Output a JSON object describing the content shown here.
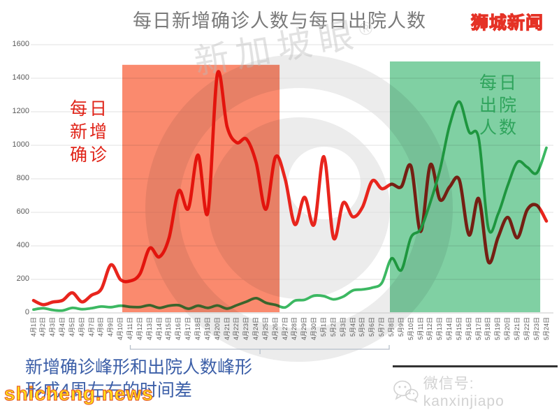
{
  "title": "每日新增确诊人数与每日出院人数",
  "brand_logo": "狮城新闻",
  "watermarks": {
    "diagonal": "新加坡眼",
    "registered": "®",
    "site": "shicheng.news"
  },
  "wechat_label": "微信号: kanxinjiapo",
  "annotations": {
    "left_label": [
      "每日",
      "新增",
      "确诊"
    ],
    "right_label": [
      "每日",
      "出院",
      "人数"
    ],
    "caption": [
      "新增确诊峰形和出院人数峰形",
      "形成4周左右的时间差"
    ]
  },
  "chart_data": {
    "type": "line",
    "title": "每日新增确诊人数与每日出院人数",
    "categories": [
      "4月1日",
      "4月2日",
      "4月3日",
      "4月4日",
      "4月5日",
      "4月6日",
      "4月7日",
      "4月8日",
      "4月9日",
      "4月10日",
      "4月11日",
      "4月12日",
      "4月13日",
      "4月14日",
      "4月15日",
      "4月16日",
      "4月17日",
      "4月18日",
      "4月19日",
      "4月20日",
      "4月21日",
      "4月22日",
      "4月23日",
      "4月24日",
      "4月25日",
      "4月26日",
      "4月27日",
      "4月28日",
      "4月29日",
      "4月30日",
      "5月1日",
      "5月2日",
      "5月3日",
      "5月4日",
      "5月5日",
      "5月6日",
      "5月7日",
      "5月8日",
      "5月9日",
      "5月10日",
      "5月11日",
      "5月12日",
      "5月13日",
      "5月14日",
      "5月15日",
      "5月16日",
      "5月17日",
      "5月18日",
      "5月19日",
      "5月20日",
      "5月21日",
      "5月22日",
      "5月23日",
      "5月24日"
    ],
    "series": [
      {
        "name": "每日新增确诊",
        "color": "#e8251d",
        "values": [
          74,
          49,
          65,
          75,
          120,
          66,
          106,
          142,
          287,
          198,
          191,
          233,
          386,
          334,
          447,
          728,
          623,
          942,
          596,
          1426,
          1111,
          1016,
          1037,
          897,
          618,
          931,
          799,
          528,
          690,
          528,
          932,
          447,
          657,
          573,
          632,
          788,
          741,
          768,
          753,
          876,
          486,
          884,
          675,
          752,
          793,
          465,
          682,
          305,
          451,
          570,
          448,
          614,
          642,
          548
        ]
      },
      {
        "name": "每日出院人数",
        "color": "#3cb862",
        "values": [
          20,
          28,
          17,
          14,
          30,
          22,
          28,
          38,
          34,
          43,
          36,
          35,
          46,
          30,
          43,
          46,
          25,
          43,
          30,
          44,
          26,
          46,
          67,
          88,
          61,
          48,
          33,
          73,
          78,
          103,
          100,
          81,
          97,
          134,
          140,
          151,
          180,
          325,
          255,
          450,
          500,
          660,
          855,
          1120,
          1260,
          1080,
          1040,
          505,
          590,
          760,
          900,
          870,
          835,
          985
        ]
      }
    ],
    "ylim": [
      0,
      1600
    ],
    "yticks": [
      0,
      200,
      400,
      600,
      800,
      1000,
      1200,
      1400,
      1600
    ],
    "grid": "horizontal-only",
    "legend": "inline-text-labels",
    "bands": [
      {
        "name": "新增确诊峰形",
        "color": "#fa8a6e",
        "from_index": 9.17,
        "to_index": 25.42,
        "top_value": 1480
      },
      {
        "name": "出院人数峰形",
        "color": "#80d0a3",
        "from_index": 36.82,
        "to_index": 52.35,
        "top_value": 1500
      }
    ],
    "span_bracket": {
      "from_index": 10.0,
      "to_index": 36.75,
      "tick_index": 23.4,
      "caption_ref": "形成4周左右的时间差"
    }
  }
}
